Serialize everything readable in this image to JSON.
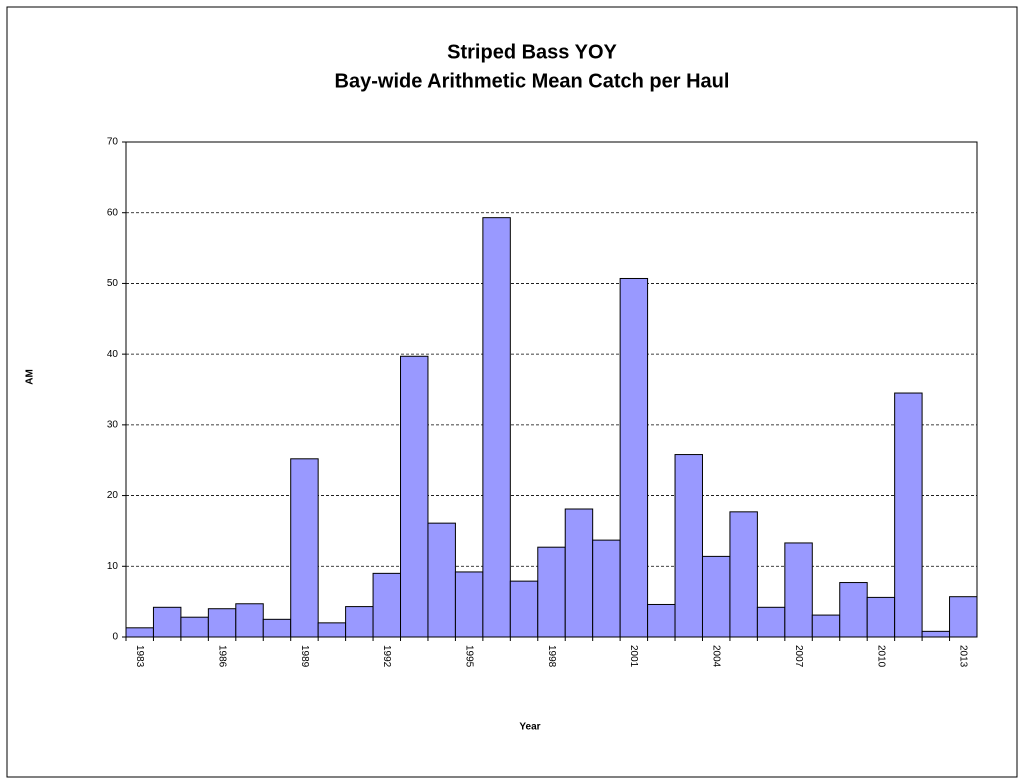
{
  "chart_data": {
    "type": "bar",
    "title": "Striped Bass YOY",
    "subtitle": "Bay-wide Arithmetic Mean Catch per Haul",
    "x_label": "Year",
    "y_label": "AM",
    "categories": [
      "1983",
      null,
      null,
      "1986",
      null,
      null,
      "1989",
      null,
      null,
      "1992",
      null,
      null,
      "1995",
      null,
      null,
      "1998",
      null,
      null,
      "2001",
      null,
      null,
      "2004",
      null,
      null,
      "2007",
      null,
      null,
      "2010",
      null,
      null,
      "2013"
    ],
    "values": [
      1.3,
      4.2,
      2.8,
      4.0,
      4.7,
      2.5,
      25.2,
      2.0,
      4.3,
      9.0,
      39.7,
      16.1,
      9.2,
      59.3,
      7.9,
      12.7,
      18.1,
      13.7,
      50.7,
      4.6,
      25.8,
      11.4,
      17.7,
      4.2,
      13.3,
      3.1,
      7.7,
      5.6,
      34.5,
      0.8,
      5.7
    ],
    "color": "#9999ff",
    "ylim": [
      0,
      70
    ],
    "yticks": [
      0,
      10,
      20,
      30,
      40,
      50,
      60,
      70
    ],
    "grid": true
  }
}
